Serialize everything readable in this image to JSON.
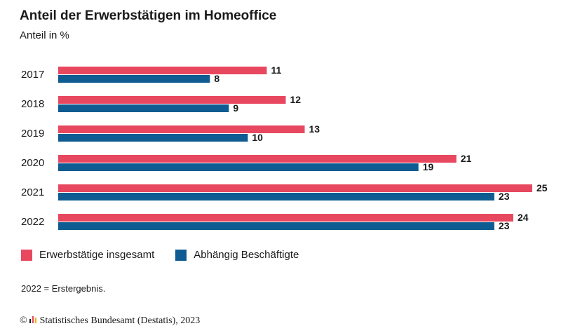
{
  "chart_data": {
    "type": "bar",
    "orientation": "horizontal",
    "title": "Anteil der Erwerbstätigen im Homeoffice",
    "subtitle": "Anteil in %",
    "categories": [
      "2017",
      "2018",
      "2019",
      "2020",
      "2021",
      "2022"
    ],
    "series": [
      {
        "name": "Erwerbstätige insgesamt",
        "values": [
          11,
          12,
          13,
          21,
          25,
          24
        ],
        "color": "#e8485f"
      },
      {
        "name": "Abhängig Beschäftigte",
        "values": [
          8,
          9,
          10,
          19,
          23,
          23
        ],
        "color": "#0e5c92"
      }
    ],
    "xlim": [
      0,
      25
    ],
    "grid": false,
    "legend_position": "bottom-left"
  },
  "note": "2022 = Erstergebnis.",
  "source": {
    "copyright_symbol": "©",
    "text": "Statistisches Bundesamt (Destatis), 2023",
    "icon": "destatis-logo-icon"
  }
}
